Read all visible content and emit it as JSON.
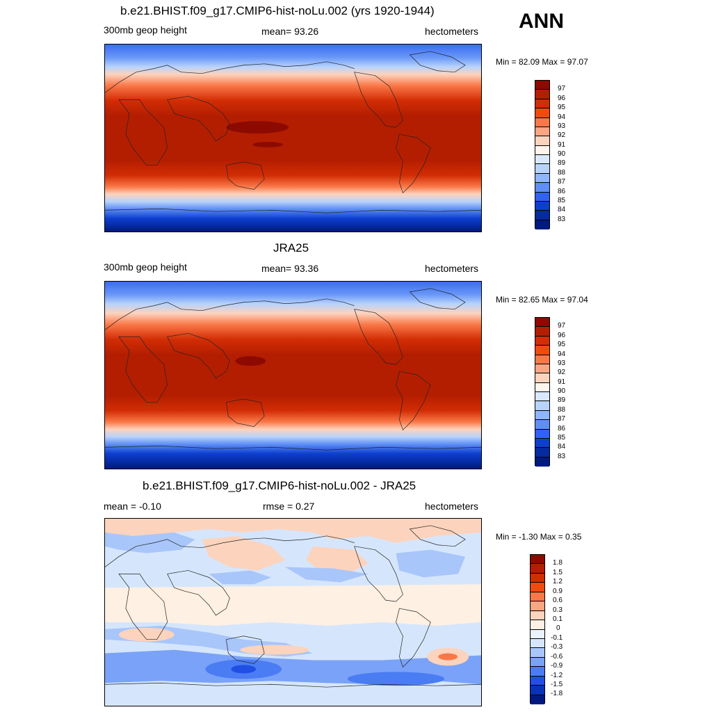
{
  "season": "ANN",
  "panels": [
    {
      "title": "b.e21.BHIST.f09_g17.CMIP6-hist-noLu.002 (yrs 1920-1944)",
      "left": "300mb geop height",
      "center": "mean=  93.26",
      "right": "hectometers",
      "minmax": "Min =  82.09 Max =  97.07"
    },
    {
      "title": "JRA25",
      "left": "300mb geop height",
      "center": "mean=  93.36",
      "right": "hectometers",
      "minmax": "Min =  82.65 Max =  97.04"
    },
    {
      "title": "b.e21.BHIST.f09_g17.CMIP6-hist-noLu.002 - JRA25",
      "left": "mean =  -0.10",
      "center": "rmse =   0.27",
      "right": "hectometers",
      "minmax": "Min =  -1.30 Max =   0.35"
    }
  ],
  "colorbars": {
    "height": {
      "levels": [
        "97",
        "96",
        "95",
        "94",
        "93",
        "92",
        "91",
        "90",
        "89",
        "88",
        "87",
        "86",
        "85",
        "84",
        "83"
      ],
      "colors": [
        "#8c0a00",
        "#b41e00",
        "#d22d05",
        "#f04b0f",
        "#fa7848",
        "#fca582",
        "#fcd3bd",
        "#fef5ec",
        "#d9e9fb",
        "#b8d3fb",
        "#8fb5fa",
        "#5e8ef6",
        "#2f63f0",
        "#0d3fcf",
        "#062a9f",
        "#001a80"
      ]
    },
    "diff": {
      "levels": [
        "1.8",
        "1.5",
        "1.2",
        "0.9",
        "0.6",
        "0.3",
        "0.1",
        "0",
        "-0.1",
        "-0.3",
        "-0.6",
        "-0.9",
        "-1.2",
        "-1.5",
        "-1.8"
      ],
      "colors": [
        "#8c0a00",
        "#b41e00",
        "#d22d05",
        "#f04b0f",
        "#fa7848",
        "#fca582",
        "#fcd3bd",
        "#fef0e2",
        "#eaf2fd",
        "#d5e6fc",
        "#a9c6fa",
        "#7aa2f8",
        "#4a7cf3",
        "#1f4fe3",
        "#0a32b8",
        "#001a80"
      ]
    }
  }
}
